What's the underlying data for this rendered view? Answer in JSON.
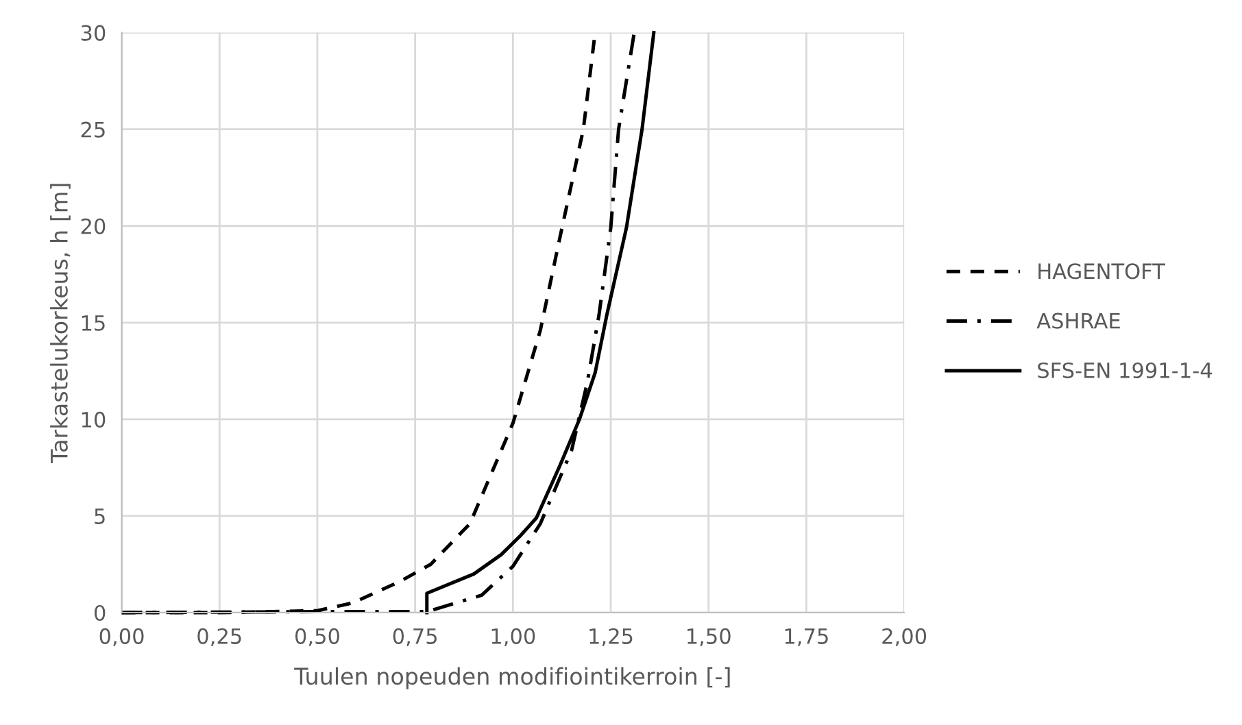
{
  "chart_data": {
    "type": "line",
    "xlabel": "Tuulen nopeuden modifiointikerroin [-]",
    "ylabel": "Tarkastelukorkeus, h [m]",
    "xlim": [
      0,
      2
    ],
    "ylim": [
      0,
      30
    ],
    "xticks": [
      {
        "value": 0,
        "label": "0,00"
      },
      {
        "value": 0.25,
        "label": "0,25"
      },
      {
        "value": 0.5,
        "label": "0,50"
      },
      {
        "value": 0.75,
        "label": "0,75"
      },
      {
        "value": 1,
        "label": "1,00"
      },
      {
        "value": 1.25,
        "label": "1,25"
      },
      {
        "value": 1.5,
        "label": "1,50"
      },
      {
        "value": 1.75,
        "label": "1,75"
      },
      {
        "value": 2,
        "label": "2,00"
      }
    ],
    "yticks": [
      0,
      5,
      10,
      15,
      20,
      25,
      30
    ],
    "grid": true,
    "legend": "right",
    "marker": "none",
    "series": [
      {
        "name": "HAGENTOFT",
        "color": "#000000",
        "line_style": "dashed",
        "x": [
          0,
          0.25,
          0.5,
          0.59,
          0.71,
          0.79,
          0.89,
          1.0,
          1.07,
          1.12,
          1.18,
          1.21
        ],
        "values": [
          0,
          0,
          0.1,
          0.5,
          1.6,
          2.5,
          4.6,
          9.8,
          14.6,
          19.4,
          25,
          30
        ]
      },
      {
        "name": "ASHRAE",
        "color": "#000000",
        "line_style": "dashdot",
        "x": [
          0,
          0.5,
          0.78,
          0.92,
          1.0,
          1.07,
          1.15,
          1.19,
          1.22,
          1.25,
          1.27,
          1.31
        ],
        "values": [
          0,
          0.05,
          0.05,
          0.9,
          2.4,
          4.6,
          8.4,
          11.9,
          15.4,
          19.9,
          25,
          30
        ]
      },
      {
        "name": "SFS-EN 1991-1-4",
        "color": "#000000",
        "line_style": "solid",
        "x": [
          0.78,
          0.78,
          0.9,
          0.97,
          1.02,
          1.06,
          1.12,
          1.17,
          1.21,
          1.24,
          1.29,
          1.33,
          1.36
        ],
        "values": [
          0,
          1,
          2,
          3,
          4,
          4.9,
          7.6,
          10,
          12.4,
          15.4,
          19.9,
          25,
          30
        ]
      }
    ]
  }
}
